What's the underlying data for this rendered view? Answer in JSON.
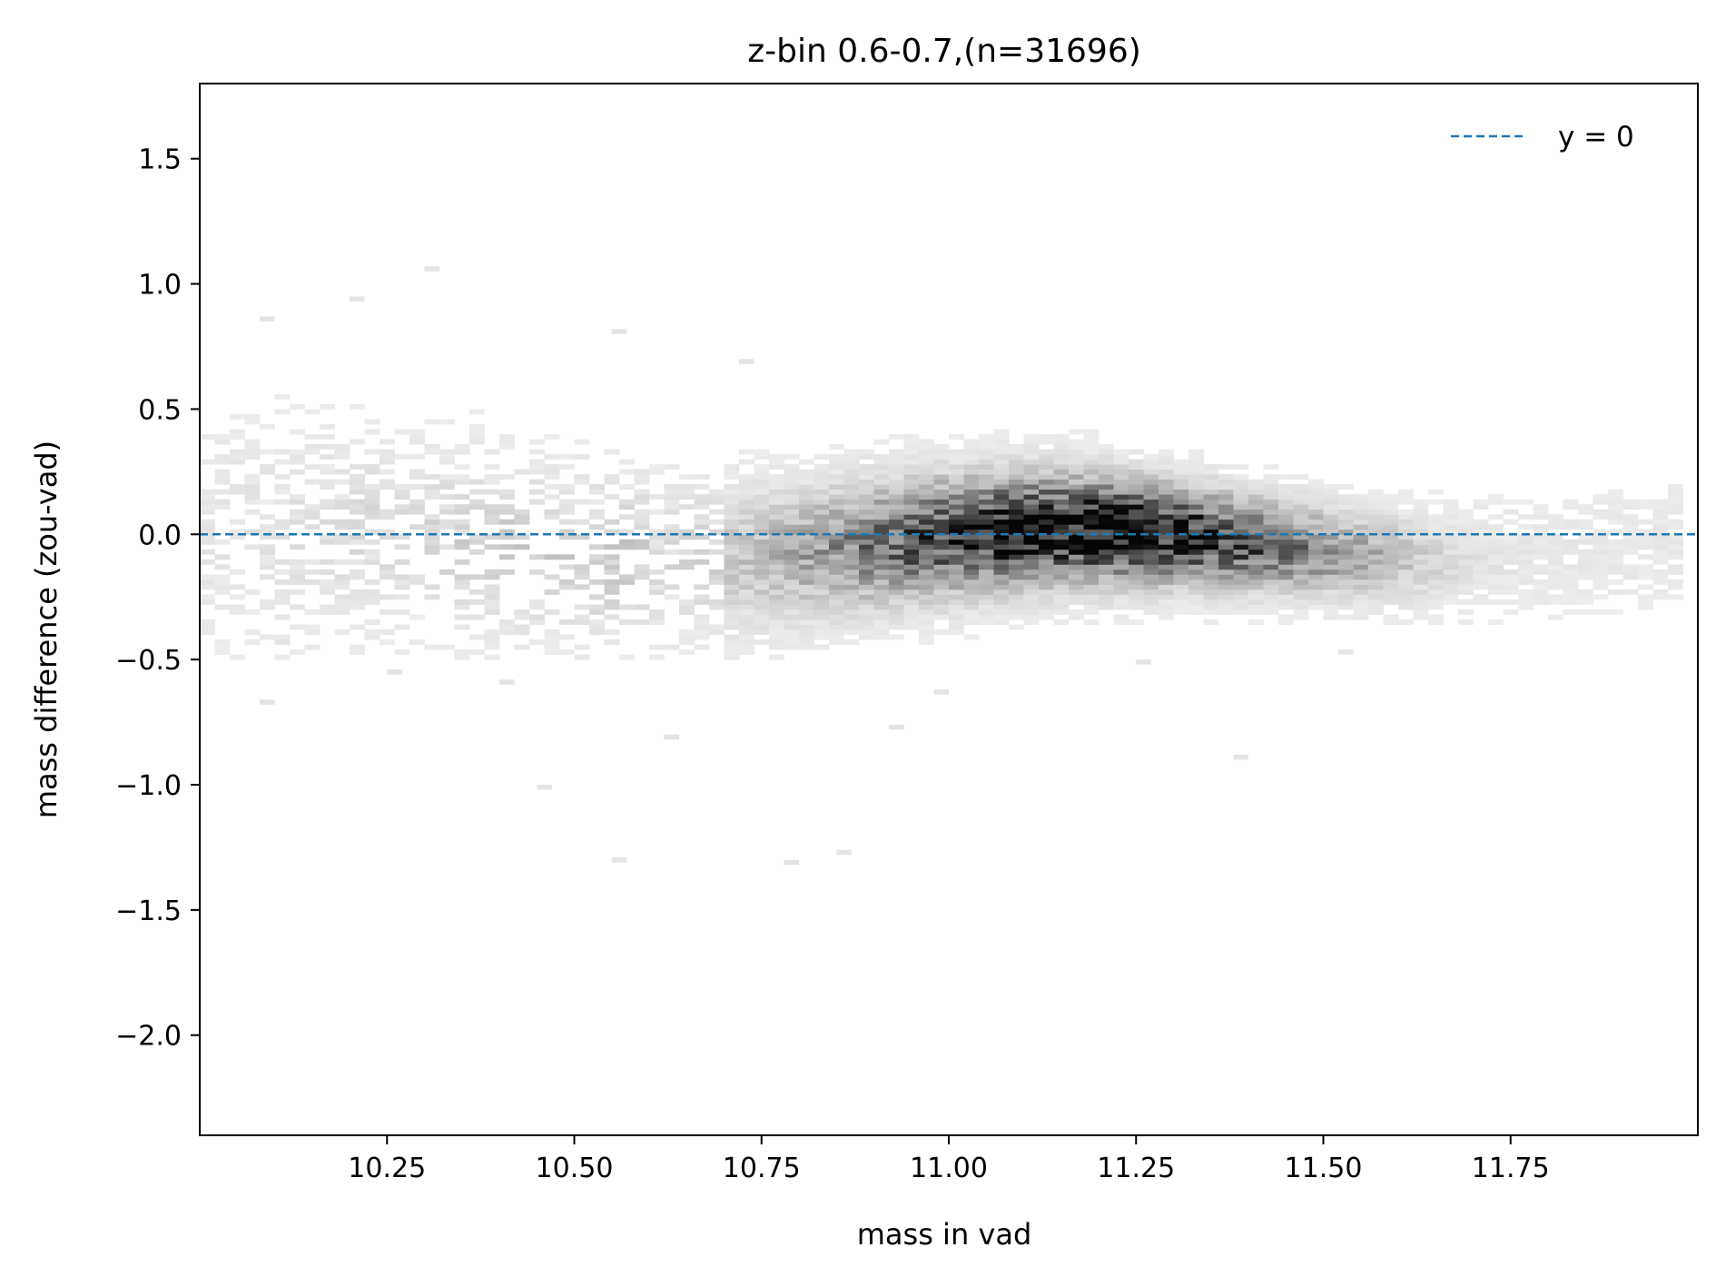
{
  "chart_data": {
    "type": "heatmap",
    "title": "z-bin 0.6-0.7,(n=31696)",
    "xlabel": "mass in vad",
    "ylabel": "mass difference (zou-vad)",
    "xlim": [
      10.0,
      12.0
    ],
    "ylim": [
      -2.4,
      1.8
    ],
    "xticks": [
      10.25,
      10.5,
      10.75,
      11.0,
      11.25,
      11.5,
      11.75
    ],
    "xtick_labels": [
      "10.25",
      "10.50",
      "10.75",
      "11.00",
      "11.25",
      "11.50",
      "11.75"
    ],
    "yticks": [
      1.5,
      1.0,
      0.5,
      0.0,
      -0.5,
      -1.0,
      -1.5,
      -2.0
    ],
    "ytick_labels": [
      "1.5",
      "1.0",
      "0.5",
      "0.0",
      "−0.5",
      "−1.0",
      "−1.5",
      "−2.0"
    ],
    "colormap": "gray_r",
    "reference_line": {
      "y": 0,
      "label": "y = 0",
      "style": "dashed",
      "color": "#1f77b4"
    },
    "legend": {
      "position": "top-right",
      "entries": [
        "y = 0"
      ]
    },
    "distribution": {
      "description_units": "data",
      "core_center_x": 11.18,
      "core_center_y": -0.04,
      "x_range": [
        10.0,
        11.95
      ],
      "y_spread_core": 0.16
    },
    "outliers": [
      [
        10.3,
        1.05
      ],
      [
        10.2,
        0.93
      ],
      [
        10.08,
        0.85
      ],
      [
        10.55,
        0.8
      ],
      [
        10.72,
        0.68
      ],
      [
        10.45,
        -1.02
      ],
      [
        10.55,
        -1.31
      ],
      [
        10.78,
        -1.32
      ],
      [
        10.85,
        -1.28
      ],
      [
        11.38,
        -0.9
      ],
      [
        10.62,
        -0.82
      ],
      [
        10.08,
        -0.68
      ],
      [
        10.4,
        -0.6
      ],
      [
        10.98,
        -0.64
      ],
      [
        10.92,
        -0.78
      ],
      [
        10.1,
        -0.44
      ],
      [
        10.25,
        -0.56
      ],
      [
        11.52,
        -0.48
      ],
      [
        11.25,
        -0.52
      ]
    ],
    "grid": false
  }
}
